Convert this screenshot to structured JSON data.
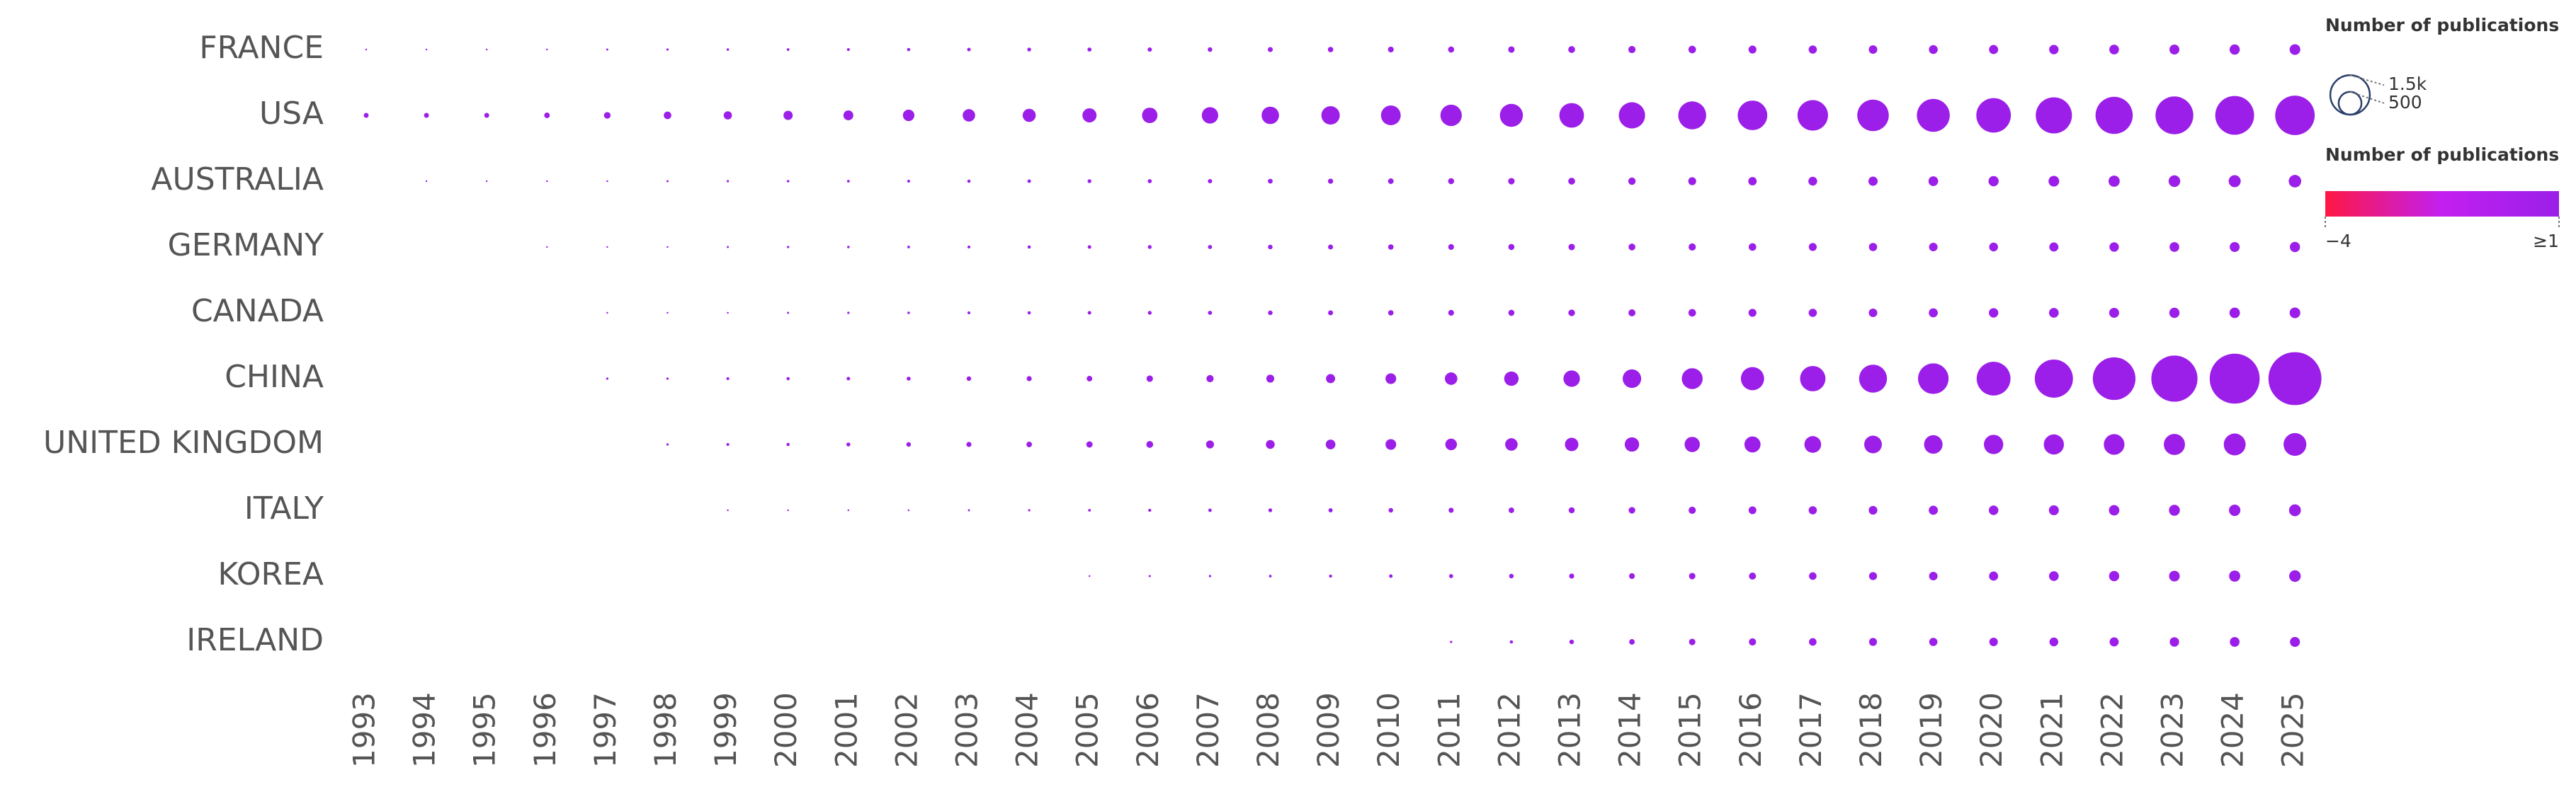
{
  "chart_data": {
    "type": "bubble",
    "categories": [
      "1993",
      "1994",
      "1995",
      "1996",
      "1997",
      "1998",
      "1999",
      "2000",
      "2001",
      "2002",
      "2003",
      "2004",
      "2005",
      "2006",
      "2007",
      "2008",
      "2009",
      "2010",
      "2011",
      "2012",
      "2013",
      "2014",
      "2015",
      "2016",
      "2017",
      "2018",
      "2019",
      "2020",
      "2021",
      "2022",
      "2023",
      "2024",
      "2025"
    ],
    "series": [
      {
        "name": "FRANCE",
        "color": "#9b1fe8",
        "values": [
          2,
          2,
          3,
          3,
          4,
          5,
          6,
          7,
          8,
          10,
          12,
          14,
          16,
          18,
          20,
          24,
          28,
          32,
          36,
          40,
          45,
          50,
          55,
          60,
          65,
          70,
          75,
          80,
          85,
          90,
          95,
          100,
          110
        ]
      },
      {
        "name": "USA",
        "color": "#9b1fe8",
        "values": [
          23,
          23,
          23,
          30,
          42,
          55,
          65,
          82,
          94,
          127,
          150,
          166,
          192,
          230,
          260,
          292,
          326,
          375,
          440,
          510,
          585,
          666,
          752,
          843,
          900,
          960,
          1040,
          1147,
          1260,
          1330,
          1375,
          1450,
          1500
        ]
      },
      {
        "name": "AUSTRALIA",
        "color": "#9b1fe8",
        "values": [
          null,
          2,
          2,
          3,
          3,
          4,
          5,
          6,
          7,
          8,
          10,
          12,
          14,
          16,
          18,
          22,
          26,
          30,
          35,
          40,
          45,
          52,
          60,
          68,
          75,
          82,
          90,
          100,
          110,
          120,
          130,
          140,
          150
        ]
      },
      {
        "name": "GERMANY",
        "color": "#9b1fe8",
        "values": [
          null,
          null,
          null,
          2,
          2,
          3,
          4,
          5,
          6,
          7,
          8,
          10,
          12,
          14,
          16,
          20,
          24,
          28,
          32,
          36,
          40,
          45,
          50,
          55,
          60,
          65,
          70,
          75,
          80,
          85,
          90,
          95,
          100
        ]
      },
      {
        "name": "CANADA",
        "color": "#9b1fe8",
        "values": [
          null,
          null,
          null,
          null,
          2,
          2,
          3,
          4,
          5,
          6,
          8,
          10,
          12,
          14,
          16,
          20,
          24,
          28,
          32,
          36,
          42,
          48,
          55,
          60,
          65,
          70,
          78,
          85,
          90,
          95,
          100,
          105,
          110
        ]
      },
      {
        "name": "CHINA",
        "color": "#9b1fe8",
        "values": [
          null,
          null,
          null,
          null,
          5,
          5,
          8,
          10,
          12,
          15,
          20,
          25,
          30,
          40,
          50,
          60,
          80,
          110,
          150,
          200,
          260,
          330,
          420,
          520,
          620,
          750,
          900,
          1100,
          1400,
          1750,
          2050,
          2400,
          2700
        ]
      },
      {
        "name": "UNITED KINGDOM",
        "color": "#9b1fe8",
        "values": [
          null,
          null,
          null,
          null,
          null,
          5,
          8,
          10,
          15,
          20,
          25,
          30,
          38,
          45,
          60,
          75,
          90,
          110,
          130,
          150,
          175,
          200,
          225,
          250,
          270,
          300,
          330,
          360,
          390,
          410,
          430,
          460,
          500
        ]
      },
      {
        "name": "ITALY",
        "color": "#9b1fe8",
        "values": [
          null,
          null,
          null,
          null,
          null,
          null,
          2,
          2,
          3,
          3,
          4,
          5,
          7,
          9,
          11,
          14,
          17,
          20,
          25,
          30,
          35,
          42,
          50,
          58,
          65,
          72,
          80,
          88,
          95,
          105,
          115,
          125,
          135
        ]
      },
      {
        "name": "KOREA",
        "color": "#9b1fe8",
        "values": [
          null,
          null,
          null,
          null,
          null,
          null,
          null,
          null,
          null,
          null,
          null,
          null,
          3,
          4,
          5,
          7,
          9,
          12,
          16,
          20,
          25,
          32,
          40,
          48,
          55,
          62,
          70,
          80,
          90,
          100,
          110,
          120,
          130
        ]
      },
      {
        "name": "IRELAND",
        "color": "#9b1fe8",
        "values": [
          null,
          null,
          null,
          null,
          null,
          null,
          null,
          null,
          null,
          null,
          null,
          null,
          null,
          null,
          null,
          null,
          null,
          null,
          5,
          10,
          20,
          30,
          40,
          50,
          55,
          60,
          65,
          70,
          75,
          80,
          85,
          90,
          95
        ]
      }
    ],
    "size_legend": {
      "title": "Number of publications",
      "values": [
        {
          "value": 1500,
          "label": "1.5k"
        },
        500
      ]
    },
    "colorbar": {
      "title": "Number of publications",
      "colorscale": [
        "#ff1744",
        "#c21ff0",
        "#9b1fe8"
      ],
      "ticks": [
        {
          "value": -4,
          "label": "−4"
        },
        {
          "value": 1,
          "label": "≥1"
        }
      ]
    }
  }
}
